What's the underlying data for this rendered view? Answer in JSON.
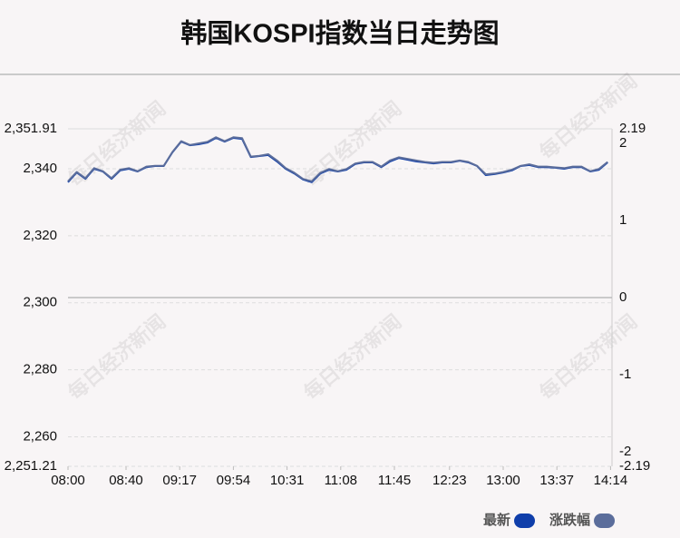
{
  "chart_data": {
    "type": "line",
    "title": "韩国KOSPI指数当日走势图",
    "watermark": "每日经济新闻",
    "xlim": [
      480,
      855
    ],
    "xticks": [
      {
        "value": 480,
        "label": "08:00"
      },
      {
        "value": 520,
        "label": "08:40"
      },
      {
        "value": 557,
        "label": "09:17"
      },
      {
        "value": 594,
        "label": "09:54"
      },
      {
        "value": 631,
        "label": "10:31"
      },
      {
        "value": 668,
        "label": "11:08"
      },
      {
        "value": 705,
        "label": "11:45"
      },
      {
        "value": 743,
        "label": "12:23"
      },
      {
        "value": 780,
        "label": "13:00"
      },
      {
        "value": 817,
        "label": "13:37"
      },
      {
        "value": 854,
        "label": "14:14"
      }
    ],
    "ylim": [
      2251.21,
      2351.91
    ],
    "yticks": [
      {
        "value": 2251.21,
        "label": "2,251.21"
      },
      {
        "value": 2260,
        "label": "2,260"
      },
      {
        "value": 2280,
        "label": "2,280"
      },
      {
        "value": 2300,
        "label": "2,300"
      },
      {
        "value": 2320,
        "label": "2,320"
      },
      {
        "value": 2340,
        "label": "2,340"
      },
      {
        "value": 2351.91,
        "label": "2,351.91"
      }
    ],
    "y2lim": [
      -2.19,
      2.19
    ],
    "y2ticks": [
      -2.19,
      -2,
      -1,
      0,
      1,
      2,
      2.19
    ],
    "grid": true,
    "legend": "bottom-right",
    "x": [
      480,
      486,
      492,
      498,
      504,
      510,
      516,
      522,
      528,
      534,
      540,
      546,
      552,
      558,
      564,
      570,
      576,
      582,
      588,
      594,
      600,
      606,
      612,
      618,
      624,
      630,
      636,
      642,
      648,
      654,
      660,
      666,
      672,
      678,
      684,
      690,
      696,
      702,
      708,
      714,
      720,
      726,
      732,
      738,
      744,
      750,
      756,
      762,
      768,
      774,
      780,
      786,
      792,
      798,
      804,
      810,
      816,
      822,
      828,
      834,
      840,
      846,
      852
    ],
    "series": [
      {
        "name": "最新",
        "color": "#0f3eaa",
        "values": [
          2336.0,
          2338.9,
          2337.0,
          2340.0,
          2339.2,
          2337.0,
          2339.5,
          2340.0,
          2339.2,
          2340.5,
          2340.8,
          2340.8,
          2344.9,
          2348.1,
          2347.0,
          2347.3,
          2347.8,
          2349.2,
          2348.1,
          2349.2,
          2348.9,
          2343.5,
          2343.8,
          2344.1,
          2342.2,
          2340.0,
          2338.6,
          2336.8,
          2336.0,
          2338.6,
          2339.7,
          2339.2,
          2339.7,
          2341.4,
          2341.9,
          2341.9,
          2340.5,
          2342.2,
          2343.2,
          2342.7,
          2342.2,
          2341.9,
          2341.6,
          2341.9,
          2341.9,
          2342.4,
          2341.9,
          2340.8,
          2338.1,
          2338.4,
          2338.9,
          2339.5,
          2340.8,
          2341.1,
          2340.5,
          2340.5,
          2340.3,
          2340.0,
          2340.5,
          2340.5,
          2339.2,
          2339.7,
          2341.9
        ]
      },
      {
        "name": "涨跌幅",
        "color": "#5b6d9b",
        "axis": "y2",
        "values": [
          1.51,
          1.63,
          1.55,
          1.68,
          1.64,
          1.55,
          1.66,
          1.68,
          1.64,
          1.7,
          1.71,
          1.71,
          1.89,
          2.03,
          1.98,
          2.0,
          2.02,
          2.08,
          2.03,
          2.08,
          2.07,
          1.83,
          1.84,
          1.86,
          1.78,
          1.68,
          1.62,
          1.54,
          1.51,
          1.62,
          1.67,
          1.64,
          1.67,
          1.74,
          1.76,
          1.76,
          1.7,
          1.78,
          1.82,
          1.8,
          1.78,
          1.76,
          1.75,
          1.76,
          1.76,
          1.78,
          1.76,
          1.71,
          1.6,
          1.61,
          1.63,
          1.66,
          1.71,
          1.73,
          1.7,
          1.7,
          1.69,
          1.68,
          1.7,
          1.7,
          1.64,
          1.67,
          1.76
        ]
      }
    ]
  }
}
